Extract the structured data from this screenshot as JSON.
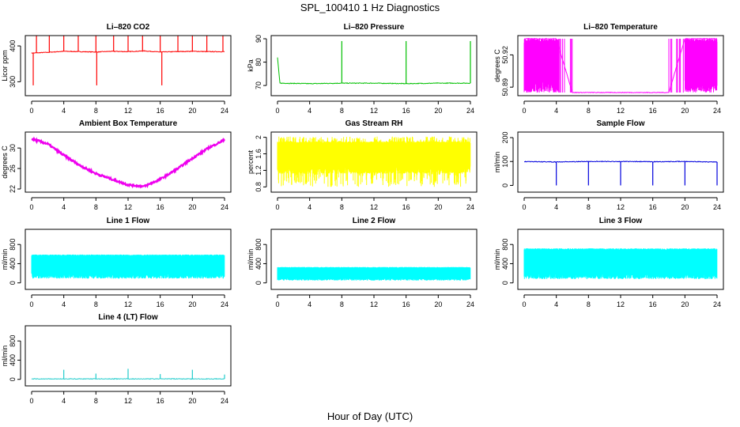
{
  "figure": {
    "title": "SPL_100410  1 Hz Diagnostics",
    "xlabel": "Hour of Day (UTC)"
  },
  "chart_data": [
    {
      "type": "line",
      "title": "Li–820 CO2",
      "ylabel": "Licor ppm",
      "xlim": [
        0,
        24
      ],
      "xticks": [
        0,
        4,
        8,
        12,
        16,
        20,
        24
      ],
      "ylim": [
        270,
        420
      ],
      "yticks": [
        300,
        400
      ],
      "color": "#ff0000",
      "series": [
        {
          "x": [
            0,
            2,
            4,
            6,
            8,
            10,
            12,
            14,
            16,
            18,
            20,
            22,
            24
          ],
          "y": [
            380,
            382,
            385,
            384,
            383,
            385,
            384,
            386,
            383,
            384,
            385,
            384,
            384
          ]
        }
      ],
      "spikes_up": [
        0.6,
        2.2,
        4.0,
        5.8,
        8.0,
        10.2,
        12.0,
        13.8,
        16.0,
        18.2,
        20.0,
        21.8,
        23.8
      ],
      "spike_peak": 435,
      "spikes_down": [
        0.2,
        8.1,
        16.2
      ],
      "spike_trough": 290
    },
    {
      "type": "line",
      "title": "Li–820 Pressure",
      "ylabel": "kPa",
      "xlim": [
        0,
        24
      ],
      "xticks": [
        0,
        4,
        8,
        12,
        16,
        20,
        24
      ],
      "ylim": [
        67,
        90
      ],
      "yticks": [
        70,
        80,
        90
      ],
      "color": "#00c000",
      "series": [
        {
          "x": [
            0,
            0.3,
            4,
            8,
            12,
            16,
            20,
            24
          ],
          "y": [
            82,
            71,
            70.8,
            71,
            71,
            70.8,
            71,
            71
          ]
        }
      ],
      "spikes_up": [
        8.0,
        16.0,
        24.0
      ],
      "spike_peak": 89
    },
    {
      "type": "line",
      "title": "Li–820 Temperature",
      "ylabel": "degrees C",
      "xlim": [
        0,
        24
      ],
      "xticks": [
        0,
        4,
        8,
        12,
        16,
        20,
        24
      ],
      "ylim": [
        50.885,
        50.935
      ],
      "yticks": [
        50.89,
        50.92
      ],
      "color": "#ff00ff",
      "series": [
        {
          "x": [
            0,
            4,
            6,
            12,
            18,
            20,
            24
          ],
          "y": [
            50.935,
            50.935,
            50.885,
            50.885,
            50.885,
            50.935,
            50.935
          ]
        }
      ],
      "fill_ranges": [
        [
          0,
          4.3
        ],
        [
          20,
          24
        ]
      ],
      "fill_low": 50.885,
      "fill_high": 50.935,
      "sparse_ranges": [
        [
          4.3,
          6
        ],
        [
          18,
          20
        ]
      ]
    },
    {
      "type": "line",
      "title": "Ambient Box Temperature",
      "ylabel": "degrees C",
      "xlim": [
        0,
        24
      ],
      "xticks": [
        0,
        4,
        8,
        12,
        16,
        20,
        24
      ],
      "ylim": [
        22,
        32.5
      ],
      "yticks": [
        22,
        26,
        30
      ],
      "color": "#ee00ee",
      "series": [
        {
          "x": [
            0,
            2,
            4,
            6,
            8,
            10,
            12,
            14,
            16,
            18,
            20,
            22,
            24
          ],
          "y": [
            31.8,
            30.8,
            28.6,
            26.6,
            25.0,
            23.9,
            22.8,
            22.5,
            23.9,
            25.8,
            28.0,
            30.0,
            31.6
          ]
        }
      ]
    },
    {
      "type": "line",
      "title": "Gas Stream RH",
      "ylabel": "percent",
      "xlim": [
        0,
        24
      ],
      "xticks": [
        0,
        4,
        8,
        12,
        16,
        20,
        24
      ],
      "ylim": [
        0.75,
        2.05
      ],
      "yticks": [
        0.8,
        1.2,
        1.6,
        2.0
      ],
      "color": "#ffff00",
      "series": [
        {
          "x": [
            0,
            24
          ],
          "y": [
            1.5,
            1.5
          ]
        }
      ],
      "fill_ranges": [
        [
          0,
          24
        ]
      ],
      "fill_low": 1.12,
      "fill_high": 1.9,
      "noise_low": 0.8,
      "noise_high": 2.02
    },
    {
      "type": "line",
      "title": "Sample Flow",
      "ylabel": "ml/min",
      "xlim": [
        0,
        24
      ],
      "xticks": [
        0,
        4,
        8,
        12,
        16,
        20,
        24
      ],
      "ylim": [
        -15,
        210
      ],
      "yticks": [
        0,
        100,
        200
      ],
      "color": "#0000dd",
      "series": [
        {
          "x": [
            0,
            4,
            8,
            12,
            16,
            20,
            24
          ],
          "y": [
            100,
            98,
            100,
            100,
            99,
            100,
            98
          ]
        }
      ],
      "spikes_down": [
        4.0,
        8.0,
        12.0,
        16.0,
        20.0,
        24.0
      ],
      "spike_trough": 0
    },
    {
      "type": "line",
      "title": "Line 1 Flow",
      "ylabel": "ml/min",
      "xlim": [
        0,
        24
      ],
      "xticks": [
        0,
        4,
        8,
        12,
        16,
        20,
        24
      ],
      "ylim": [
        -70,
        1050
      ],
      "yticks": [
        0,
        400,
        800
      ],
      "color": "#00ffff",
      "series": [
        {
          "x": [
            0,
            24
          ],
          "y": [
            380,
            380
          ]
        }
      ],
      "fill_ranges": [
        [
          0,
          24
        ]
      ],
      "fill_low": 90,
      "fill_high": 590
    },
    {
      "type": "line",
      "title": "Line 2 Flow",
      "ylabel": "ml/min",
      "xlim": [
        0,
        24
      ],
      "xticks": [
        0,
        4,
        8,
        12,
        16,
        20,
        24
      ],
      "ylim": [
        -70,
        1050
      ],
      "yticks": [
        0,
        400,
        800
      ],
      "color": "#00ffff",
      "series": [
        {
          "x": [
            0,
            24
          ],
          "y": [
            200,
            200
          ]
        }
      ],
      "fill_ranges": [
        [
          0,
          24
        ]
      ],
      "fill_low": 50,
      "fill_high": 330
    },
    {
      "type": "line",
      "title": "Line 3 Flow",
      "ylabel": "ml/min",
      "xlim": [
        0,
        24
      ],
      "xticks": [
        0,
        4,
        8,
        12,
        16,
        20,
        24
      ],
      "ylim": [
        -70,
        1050
      ],
      "yticks": [
        0,
        400,
        800
      ],
      "color": "#00ffff",
      "series": [
        {
          "x": [
            0,
            24
          ],
          "y": [
            400,
            400
          ]
        }
      ],
      "fill_ranges": [
        [
          0,
          24
        ]
      ],
      "fill_low": 80,
      "fill_high": 720
    },
    {
      "type": "line",
      "title": "Line 4 (LT) Flow",
      "ylabel": "ml/min",
      "xlim": [
        0,
        24
      ],
      "xticks": [
        0,
        4,
        8,
        12,
        16,
        20,
        24
      ],
      "ylim": [
        -70,
        1050
      ],
      "yticks": [
        0,
        400,
        800
      ],
      "color": "#22cccc",
      "series": [
        {
          "x": [
            0,
            24
          ],
          "y": [
            10,
            10
          ]
        }
      ],
      "spikes_up": [
        4.0,
        8.0,
        12.0,
        16.0,
        20.0,
        24.0
      ],
      "spike_peaks": [
        200,
        120,
        220,
        110,
        200,
        100
      ]
    }
  ]
}
